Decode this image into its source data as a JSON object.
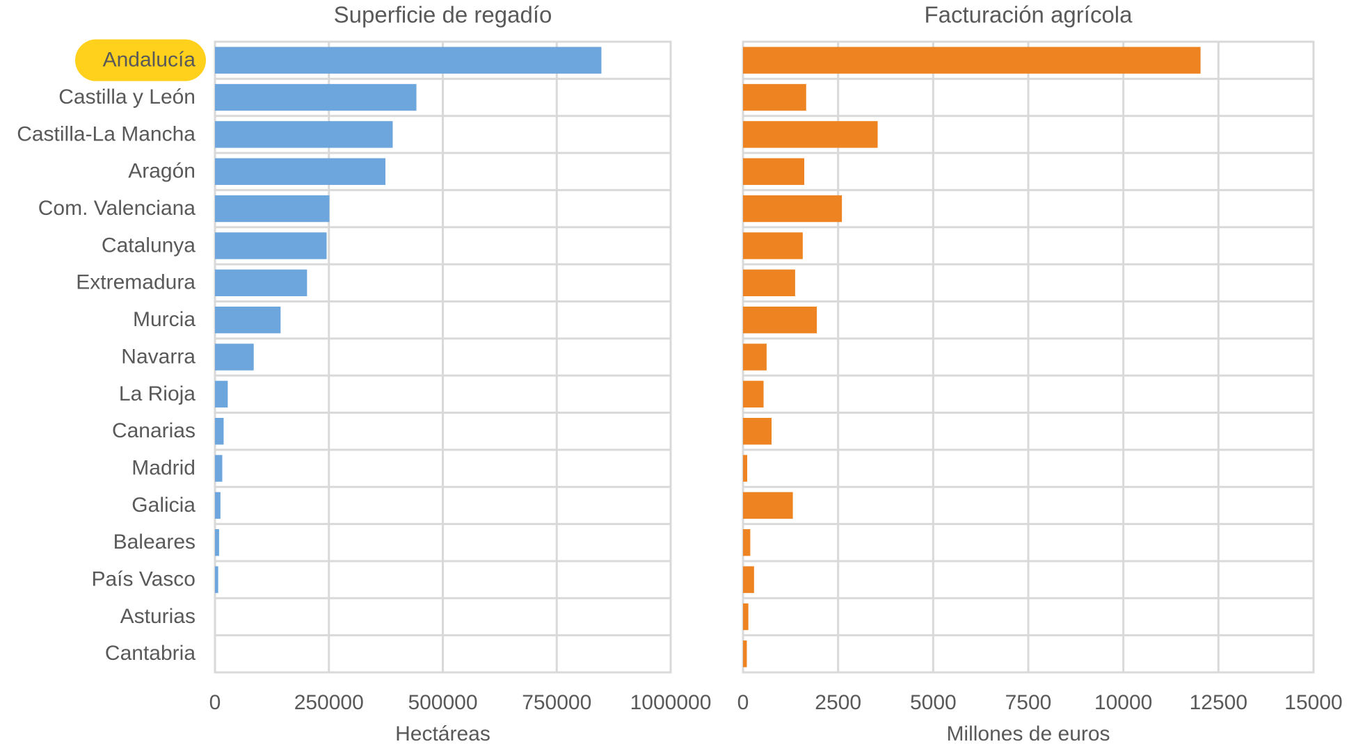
{
  "chart_data": [
    {
      "type": "bar",
      "orientation": "horizontal",
      "title": "Superficie de regadío",
      "xlabel": "Hectáreas",
      "ylabel": "",
      "xlim": [
        0,
        1000000
      ],
      "ticks": [
        "0",
        "250000",
        "500000",
        "750000",
        "1000000"
      ],
      "tick_values": [
        0,
        250000,
        500000,
        750000,
        1000000
      ],
      "grid": true,
      "color": "#6ca6dc",
      "categories": [
        "Andalucía",
        "Castilla y León",
        "Castilla-La Mancha",
        "Aragón",
        "Com. Valenciana",
        "Catalunya",
        "Extremadura",
        "Murcia",
        "Navarra",
        "La Rioja",
        "Canarias",
        "Madrid",
        "Galicia",
        "Baleares",
        "País Vasco",
        "Asturias",
        "Cantabria"
      ],
      "values": [
        848000,
        442000,
        390000,
        374000,
        251000,
        245000,
        202000,
        144000,
        85000,
        28000,
        19000,
        16000,
        12000,
        9000,
        7000,
        0,
        0
      ],
      "highlight": {
        "category": "Andalucía",
        "color": "#ffd11c"
      }
    },
    {
      "type": "bar",
      "orientation": "horizontal",
      "title": "Facturación agrícola",
      "xlabel": "Millones de euros",
      "ylabel": "",
      "xlim": [
        0,
        15000
      ],
      "ticks": [
        "0",
        "2500",
        "5000",
        "7500",
        "10000",
        "12500",
        "15000"
      ],
      "tick_values": [
        0,
        2500,
        5000,
        7500,
        10000,
        12500,
        15000
      ],
      "grid": true,
      "color": "#ed8421",
      "categories": [
        "Andalucía",
        "Castilla y León",
        "Castilla-La Mancha",
        "Aragón",
        "Com. Valenciana",
        "Catalunya",
        "Extremadura",
        "Murcia",
        "Navarra",
        "La Rioja",
        "Canarias",
        "Madrid",
        "Galicia",
        "Baleares",
        "País Vasco",
        "Asturias",
        "Cantabria"
      ],
      "values": [
        12030,
        1660,
        3540,
        1610,
        2600,
        1570,
        1370,
        1940,
        620,
        540,
        750,
        110,
        1310,
        190,
        290,
        140,
        100
      ]
    }
  ]
}
